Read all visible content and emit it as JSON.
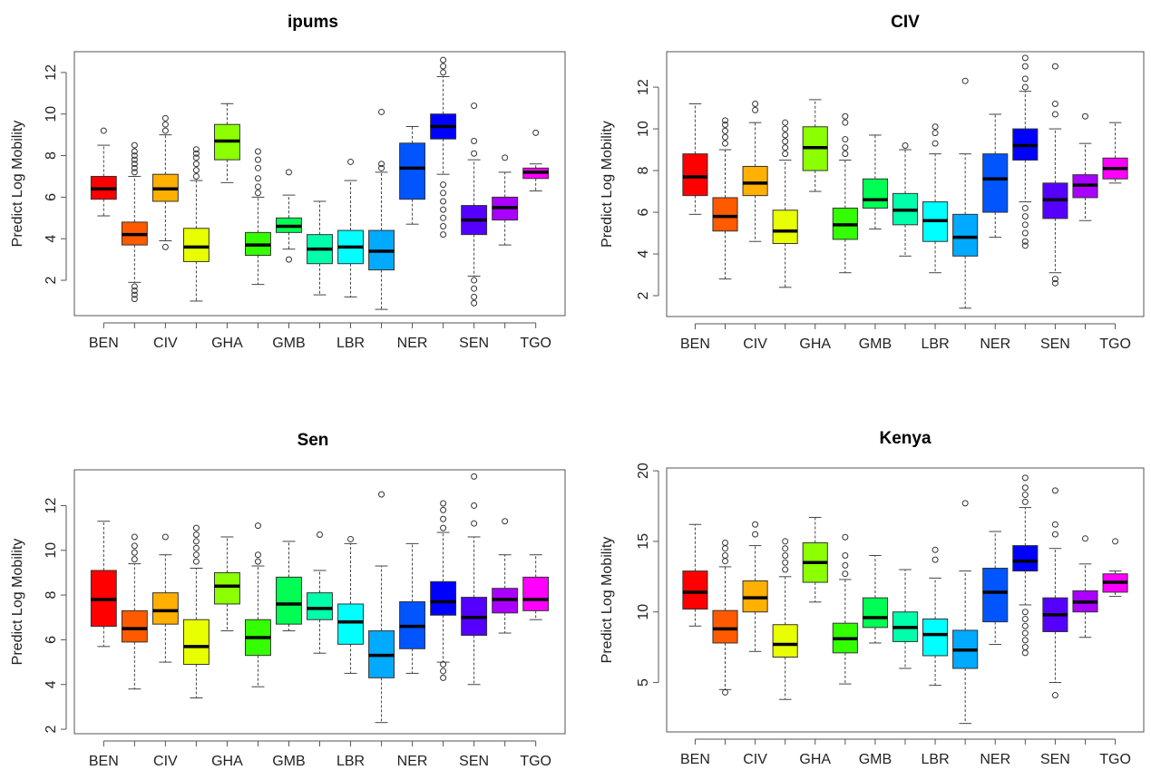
{
  "chart_data": [
    {
      "type": "box",
      "title": "ipums",
      "ylabel": "Predict Log Mobility",
      "ylim": [
        0.3,
        13.0
      ],
      "yticks": [
        2,
        4,
        6,
        8,
        10,
        12
      ],
      "categories": [
        "BEN",
        "",
        "CIV",
        "",
        "GHA",
        "",
        "GMB",
        "",
        "LBR",
        "",
        "NER",
        "",
        "SEN",
        "",
        "TGO"
      ],
      "colors": [
        "#ff0000",
        "#ff5a00",
        "#ffb000",
        "#e8ff00",
        "#8cff00",
        "#33ff00",
        "#00ff55",
        "#00ffaa",
        "#00ffff",
        "#00aaff",
        "#0055ff",
        "#0000ff",
        "#5500ff",
        "#aa00ff",
        "#ff00ff"
      ],
      "boxes": [
        {
          "min": 5.1,
          "q1": 5.9,
          "median": 6.4,
          "q3": 7.0,
          "max": 8.5,
          "outliers": [
            9.2
          ]
        },
        {
          "min": 1.9,
          "q1": 3.7,
          "median": 4.2,
          "q3": 4.8,
          "max": 7.0,
          "outliers": [
            7.2,
            7.4,
            7.6,
            7.8,
            8.0,
            8.2,
            8.5,
            1.7,
            1.5,
            1.3,
            1.1
          ]
        },
        {
          "min": 3.9,
          "q1": 5.8,
          "median": 6.4,
          "q3": 7.1,
          "max": 9.0,
          "outliers": [
            9.2,
            9.5,
            9.8,
            3.6
          ]
        },
        {
          "min": 1.0,
          "q1": 2.9,
          "median": 3.6,
          "q3": 4.5,
          "max": 6.8,
          "outliers": [
            7.0,
            7.3,
            7.6,
            7.9,
            8.1,
            8.3
          ]
        },
        {
          "min": 6.7,
          "q1": 7.8,
          "median": 8.7,
          "q3": 9.5,
          "max": 10.5,
          "outliers": []
        },
        {
          "min": 1.8,
          "q1": 3.2,
          "median": 3.7,
          "q3": 4.3,
          "max": 6.0,
          "outliers": [
            6.2,
            6.5,
            6.9,
            7.4,
            7.8,
            8.2
          ]
        },
        {
          "min": 3.5,
          "q1": 4.3,
          "median": 4.6,
          "q3": 5.0,
          "max": 6.1,
          "outliers": [
            7.2,
            3.0
          ]
        },
        {
          "min": 1.3,
          "q1": 2.8,
          "median": 3.5,
          "q3": 4.2,
          "max": 5.8,
          "outliers": []
        },
        {
          "min": 1.2,
          "q1": 2.8,
          "median": 3.6,
          "q3": 4.4,
          "max": 6.8,
          "outliers": [
            7.7
          ]
        },
        {
          "min": 0.6,
          "q1": 2.5,
          "median": 3.4,
          "q3": 4.4,
          "max": 7.2,
          "outliers": [
            7.4,
            7.6,
            10.1
          ]
        },
        {
          "min": 4.7,
          "q1": 5.9,
          "median": 7.4,
          "q3": 8.6,
          "max": 9.4,
          "outliers": []
        },
        {
          "min": 7.1,
          "q1": 8.8,
          "median": 9.4,
          "q3": 10.0,
          "max": 11.8,
          "outliers": [
            12.0,
            12.3,
            12.6,
            6.6,
            6.2,
            5.8,
            5.4,
            5.0,
            4.6,
            4.2
          ]
        },
        {
          "min": 2.2,
          "q1": 4.2,
          "median": 4.9,
          "q3": 5.6,
          "max": 7.8,
          "outliers": [
            8.1,
            8.7,
            10.4,
            2.0,
            1.6,
            1.2,
            0.9
          ]
        },
        {
          "min": 3.7,
          "q1": 4.9,
          "median": 5.5,
          "q3": 6.0,
          "max": 7.2,
          "outliers": [
            7.9
          ]
        },
        {
          "min": 6.3,
          "q1": 6.9,
          "median": 7.2,
          "q3": 7.4,
          "max": 7.6,
          "outliers": [
            9.1
          ]
        }
      ]
    },
    {
      "type": "box",
      "title": "CIV",
      "ylabel": "Predict Log Mobility",
      "ylim": [
        1.0,
        13.7
      ],
      "yticks": [
        2,
        4,
        6,
        8,
        10,
        12
      ],
      "categories": [
        "BEN",
        "",
        "CIV",
        "",
        "GHA",
        "",
        "GMB",
        "",
        "LBR",
        "",
        "NER",
        "",
        "SEN",
        "",
        "TGO"
      ],
      "colors": [
        "#ff0000",
        "#ff5a00",
        "#ffb000",
        "#e8ff00",
        "#8cff00",
        "#33ff00",
        "#00ff55",
        "#00ffaa",
        "#00ffff",
        "#00aaff",
        "#0055ff",
        "#0000ff",
        "#5500ff",
        "#aa00ff",
        "#ff00ff"
      ],
      "boxes": [
        {
          "min": 5.9,
          "q1": 6.8,
          "median": 7.7,
          "q3": 8.8,
          "max": 11.2,
          "outliers": []
        },
        {
          "min": 2.8,
          "q1": 5.1,
          "median": 5.8,
          "q3": 6.7,
          "max": 9.0,
          "outliers": [
            9.3,
            9.6,
            9.9,
            10.2,
            10.4
          ]
        },
        {
          "min": 4.6,
          "q1": 6.8,
          "median": 7.4,
          "q3": 8.2,
          "max": 10.3,
          "outliers": [
            10.9,
            11.2
          ]
        },
        {
          "min": 2.4,
          "q1": 4.5,
          "median": 5.1,
          "q3": 6.1,
          "max": 8.5,
          "outliers": [
            8.8,
            9.1,
            9.4,
            9.7,
            10.0,
            10.3
          ]
        },
        {
          "min": 7.0,
          "q1": 8.0,
          "median": 9.1,
          "q3": 10.1,
          "max": 11.4,
          "outliers": []
        },
        {
          "min": 3.1,
          "q1": 4.7,
          "median": 5.4,
          "q3": 6.2,
          "max": 8.5,
          "outliers": [
            8.8,
            9.1,
            9.5,
            10.3,
            10.6
          ]
        },
        {
          "min": 5.2,
          "q1": 6.2,
          "median": 6.6,
          "q3": 7.6,
          "max": 9.7,
          "outliers": []
        },
        {
          "min": 3.9,
          "q1": 5.4,
          "median": 6.1,
          "q3": 6.9,
          "max": 9.0,
          "outliers": [
            9.2
          ]
        },
        {
          "min": 3.1,
          "q1": 4.6,
          "median": 5.6,
          "q3": 6.5,
          "max": 8.8,
          "outliers": [
            9.3,
            9.8,
            10.1
          ]
        },
        {
          "min": 1.4,
          "q1": 3.9,
          "median": 4.8,
          "q3": 5.9,
          "max": 8.8,
          "outliers": [
            12.3
          ]
        },
        {
          "min": 4.8,
          "q1": 6.0,
          "median": 7.6,
          "q3": 8.8,
          "max": 10.7,
          "outliers": []
        },
        {
          "min": 6.5,
          "q1": 8.5,
          "median": 9.2,
          "q3": 10.0,
          "max": 11.8,
          "outliers": [
            12.0,
            12.4,
            13.0,
            13.4,
            6.2,
            5.8,
            5.4,
            5.0,
            4.6,
            4.4
          ]
        },
        {
          "min": 3.1,
          "q1": 5.7,
          "median": 6.6,
          "q3": 7.4,
          "max": 10.0,
          "outliers": [
            10.7,
            11.2,
            13.0,
            2.8,
            2.6
          ]
        },
        {
          "min": 5.6,
          "q1": 6.7,
          "median": 7.3,
          "q3": 7.8,
          "max": 9.3,
          "outliers": [
            10.6
          ]
        },
        {
          "min": 7.4,
          "q1": 7.6,
          "median": 8.1,
          "q3": 8.6,
          "max": 10.3,
          "outliers": []
        }
      ]
    },
    {
      "type": "box",
      "title": "Sen",
      "ylabel": "Predict Log Mobility",
      "ylim": [
        1.8,
        13.6
      ],
      "yticks": [
        2,
        4,
        6,
        8,
        10,
        12
      ],
      "categories": [
        "BEN",
        "",
        "CIV",
        "",
        "GHA",
        "",
        "GMB",
        "",
        "LBR",
        "",
        "NER",
        "",
        "SEN",
        "",
        "TGO"
      ],
      "colors": [
        "#ff0000",
        "#ff5a00",
        "#ffb000",
        "#e8ff00",
        "#8cff00",
        "#33ff00",
        "#00ff55",
        "#00ffaa",
        "#00ffff",
        "#00aaff",
        "#0055ff",
        "#0000ff",
        "#5500ff",
        "#aa00ff",
        "#ff00ff"
      ],
      "boxes": [
        {
          "min": 5.7,
          "q1": 6.6,
          "median": 7.8,
          "q3": 9.1,
          "max": 11.3,
          "outliers": []
        },
        {
          "min": 3.8,
          "q1": 5.9,
          "median": 6.5,
          "q3": 7.3,
          "max": 9.4,
          "outliers": [
            9.6,
            9.9,
            10.2,
            10.6
          ]
        },
        {
          "min": 5.0,
          "q1": 6.7,
          "median": 7.3,
          "q3": 8.1,
          "max": 9.8,
          "outliers": [
            10.6
          ]
        },
        {
          "min": 3.4,
          "q1": 4.9,
          "median": 5.7,
          "q3": 6.9,
          "max": 9.2,
          "outliers": [
            9.5,
            9.8,
            10.1,
            10.4,
            10.7,
            11.0
          ]
        },
        {
          "min": 6.4,
          "q1": 7.6,
          "median": 8.4,
          "q3": 9.0,
          "max": 10.6,
          "outliers": []
        },
        {
          "min": 3.9,
          "q1": 5.3,
          "median": 6.1,
          "q3": 6.9,
          "max": 9.3,
          "outliers": [
            9.5,
            9.8,
            11.1
          ]
        },
        {
          "min": 6.4,
          "q1": 6.7,
          "median": 7.6,
          "q3": 8.8,
          "max": 10.4,
          "outliers": []
        },
        {
          "min": 5.4,
          "q1": 6.9,
          "median": 7.4,
          "q3": 8.1,
          "max": 9.1,
          "outliers": [
            10.7
          ]
        },
        {
          "min": 4.5,
          "q1": 5.8,
          "median": 6.8,
          "q3": 7.6,
          "max": 10.3,
          "outliers": [
            10.5
          ]
        },
        {
          "min": 2.3,
          "q1": 4.3,
          "median": 5.3,
          "q3": 6.4,
          "max": 9.3,
          "outliers": [
            12.5
          ]
        },
        {
          "min": 4.5,
          "q1": 5.6,
          "median": 6.6,
          "q3": 7.7,
          "max": 10.3,
          "outliers": []
        },
        {
          "min": 5.0,
          "q1": 7.1,
          "median": 7.7,
          "q3": 8.6,
          "max": 10.8,
          "outliers": [
            11.0,
            11.4,
            11.8,
            12.1,
            4.9,
            4.6,
            4.3
          ]
        },
        {
          "min": 4.0,
          "q1": 6.2,
          "median": 7.0,
          "q3": 7.9,
          "max": 10.6,
          "outliers": [
            11.2,
            12.0,
            13.3
          ]
        },
        {
          "min": 6.3,
          "q1": 7.2,
          "median": 7.8,
          "q3": 8.3,
          "max": 9.8,
          "outliers": [
            11.3
          ]
        },
        {
          "min": 6.9,
          "q1": 7.3,
          "median": 7.8,
          "q3": 8.8,
          "max": 9.8,
          "outliers": []
        }
      ]
    },
    {
      "type": "box",
      "title": "Kenya",
      "ylabel": "Predict Log Mobility",
      "ylim": [
        1.5,
        20.2
      ],
      "yticks": [
        5,
        10,
        15,
        20
      ],
      "categories": [
        "BEN",
        "",
        "CIV",
        "",
        "GHA",
        "",
        "GMB",
        "",
        "LBR",
        "",
        "NER",
        "",
        "SEN",
        "",
        "TGO"
      ],
      "colors": [
        "#ff0000",
        "#ff5a00",
        "#ffb000",
        "#e8ff00",
        "#8cff00",
        "#33ff00",
        "#00ff55",
        "#00ffaa",
        "#00ffff",
        "#00aaff",
        "#0055ff",
        "#0000ff",
        "#5500ff",
        "#aa00ff",
        "#ff00ff"
      ],
      "boxes": [
        {
          "min": 9.0,
          "q1": 10.2,
          "median": 11.4,
          "q3": 12.9,
          "max": 16.2,
          "outliers": []
        },
        {
          "min": 4.5,
          "q1": 7.8,
          "median": 8.8,
          "q3": 10.1,
          "max": 13.2,
          "outliers": [
            13.6,
            14.0,
            14.5,
            14.9,
            4.3
          ]
        },
        {
          "min": 7.2,
          "q1": 10.0,
          "median": 11.0,
          "q3": 12.2,
          "max": 14.7,
          "outliers": [
            15.5,
            16.2
          ]
        },
        {
          "min": 3.8,
          "q1": 6.8,
          "median": 7.7,
          "q3": 9.1,
          "max": 12.5,
          "outliers": [
            13.0,
            13.5,
            14.0,
            14.5,
            15.0
          ]
        },
        {
          "min": 10.7,
          "q1": 12.1,
          "median": 13.5,
          "q3": 14.9,
          "max": 16.7,
          "outliers": []
        },
        {
          "min": 4.9,
          "q1": 7.1,
          "median": 8.1,
          "q3": 9.2,
          "max": 12.3,
          "outliers": [
            12.7,
            13.3,
            14.0,
            15.3
          ]
        },
        {
          "min": 7.8,
          "q1": 8.9,
          "median": 9.6,
          "q3": 11.0,
          "max": 14.0,
          "outliers": []
        },
        {
          "min": 6.0,
          "q1": 7.9,
          "median": 8.9,
          "q3": 10.0,
          "max": 13.0,
          "outliers": []
        },
        {
          "min": 4.8,
          "q1": 6.9,
          "median": 8.4,
          "q3": 9.5,
          "max": 12.4,
          "outliers": [
            13.7,
            14.4
          ]
        },
        {
          "min": 2.1,
          "q1": 6.0,
          "median": 7.3,
          "q3": 8.7,
          "max": 12.9,
          "outliers": [
            17.7
          ]
        },
        {
          "min": 7.7,
          "q1": 9.3,
          "median": 11.4,
          "q3": 13.1,
          "max": 15.7,
          "outliers": []
        },
        {
          "min": 10.5,
          "q1": 12.9,
          "median": 13.6,
          "q3": 14.7,
          "max": 17.4,
          "outliers": [
            17.8,
            18.3,
            18.8,
            19.5,
            10.0,
            9.5,
            9.0,
            8.5,
            8.0,
            7.5,
            7.1
          ]
        },
        {
          "min": 5.0,
          "q1": 8.6,
          "median": 9.8,
          "q3": 11.0,
          "max": 14.5,
          "outliers": [
            15.5,
            16.2,
            18.6,
            4.1
          ]
        },
        {
          "min": 8.2,
          "q1": 10.0,
          "median": 10.7,
          "q3": 11.5,
          "max": 13.4,
          "outliers": [
            15.2
          ]
        },
        {
          "min": 11.1,
          "q1": 11.4,
          "median": 12.1,
          "q3": 12.7,
          "max": 12.9,
          "outliers": [
            15.0
          ]
        }
      ]
    }
  ]
}
